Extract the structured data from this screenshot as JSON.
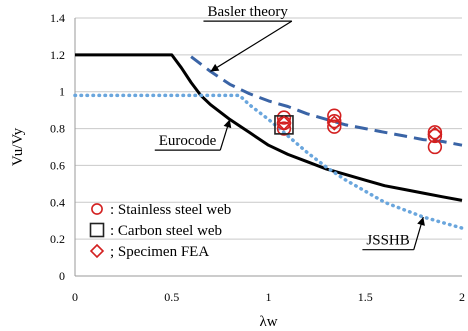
{
  "chart_data": {
    "type": "line",
    "xlabel": "λw",
    "ylabel": "Vu/Vy",
    "xlim": [
      0,
      2
    ],
    "ylim": [
      0,
      1.4
    ],
    "x_ticks": [
      0,
      0.5,
      1,
      1.5,
      2
    ],
    "y_ticks": [
      0,
      0.2,
      0.4,
      0.6,
      0.8,
      1,
      1.2,
      1.4
    ],
    "x_tick_labels": [
      "0",
      "0.5",
      "1",
      "1.5",
      "2"
    ],
    "y_tick_labels": [
      "0",
      "0.2",
      "0.4",
      "0.6",
      "0.8",
      "1",
      "1.2",
      "1.4"
    ],
    "grid": "horizontal",
    "curves": [
      {
        "label": "Eurocode",
        "style": "solid",
        "color": "#000000",
        "points": [
          [
            0,
            1.2
          ],
          [
            0.5,
            1.2
          ],
          [
            0.55,
            1.13
          ],
          [
            0.6,
            1.05
          ],
          [
            0.65,
            0.98
          ],
          [
            0.7,
            0.93
          ],
          [
            0.8,
            0.85
          ],
          [
            0.9,
            0.78
          ],
          [
            1.0,
            0.71
          ],
          [
            1.1,
            0.66
          ],
          [
            1.2,
            0.62
          ],
          [
            1.3,
            0.58
          ],
          [
            1.4,
            0.55
          ],
          [
            1.5,
            0.52
          ],
          [
            1.6,
            0.49
          ],
          [
            1.7,
            0.47
          ],
          [
            1.8,
            0.45
          ],
          [
            1.9,
            0.43
          ],
          [
            2.0,
            0.41
          ]
        ]
      },
      {
        "label": "Basler theory",
        "style": "dashed",
        "color": "#3a64a6",
        "points": [
          [
            0.6,
            1.19
          ],
          [
            0.7,
            1.11
          ],
          [
            0.8,
            1.04
          ],
          [
            0.9,
            0.99
          ],
          [
            1.0,
            0.95
          ],
          [
            1.1,
            0.92
          ],
          [
            1.2,
            0.88
          ],
          [
            1.3,
            0.85
          ],
          [
            1.4,
            0.82
          ],
          [
            1.5,
            0.8
          ],
          [
            1.6,
            0.78
          ],
          [
            1.7,
            0.76
          ],
          [
            1.8,
            0.74
          ],
          [
            1.9,
            0.73
          ],
          [
            2.0,
            0.71
          ]
        ]
      },
      {
        "label": "JSSHB",
        "style": "dotted",
        "color": "#6aa6dd",
        "points": [
          [
            0,
            0.98
          ],
          [
            0.85,
            0.98
          ],
          [
            0.9,
            0.93
          ],
          [
            1.0,
            0.85
          ],
          [
            1.1,
            0.76
          ],
          [
            1.2,
            0.67
          ],
          [
            1.3,
            0.59
          ],
          [
            1.4,
            0.52
          ],
          [
            1.5,
            0.46
          ],
          [
            1.6,
            0.4
          ],
          [
            1.7,
            0.36
          ],
          [
            1.8,
            0.32
          ],
          [
            1.9,
            0.29
          ],
          [
            2.0,
            0.26
          ]
        ]
      }
    ],
    "series": [
      {
        "name": "Stainless steel web",
        "marker": "circle",
        "color": "#d32020",
        "points": [
          [
            1.08,
            0.86
          ],
          [
            1.08,
            0.83
          ],
          [
            1.08,
            0.8
          ],
          [
            1.34,
            0.87
          ],
          [
            1.34,
            0.84
          ],
          [
            1.34,
            0.81
          ],
          [
            1.86,
            0.78
          ],
          [
            1.86,
            0.76
          ],
          [
            1.86,
            0.7
          ]
        ]
      },
      {
        "name": "Carbon steel web",
        "marker": "square",
        "color": "#222222",
        "points": [
          [
            1.08,
            0.82
          ]
        ]
      },
      {
        "name": "Specimen FEA",
        "marker": "diamond",
        "color": "#d32020",
        "points": [
          [
            1.08,
            0.83
          ],
          [
            1.34,
            0.83
          ],
          [
            1.86,
            0.77
          ]
        ]
      }
    ],
    "legend": {
      "placement": "bottom-left",
      "entries": [
        {
          "marker": "circle",
          "color": "#d32020",
          "text": ": Stainless steel web"
        },
        {
          "marker": "square",
          "color": "#222222",
          "text": ": Carbon steel web"
        },
        {
          "marker": "diamond",
          "color": "#d32020",
          "text": "; Specimen FEA"
        }
      ]
    },
    "annotations": [
      {
        "text": "Basler theory",
        "box": true,
        "target": [
          0.7,
          1.11
        ],
        "anchor": [
          1.1,
          1.41
        ]
      },
      {
        "text": "Eurocode",
        "box": true,
        "target": [
          0.8,
          0.85
        ],
        "anchor": [
          0.73,
          0.71
        ]
      },
      {
        "text": "JSSHB",
        "box": true,
        "target": [
          1.8,
          0.32
        ],
        "anchor": [
          1.73,
          0.17
        ]
      }
    ]
  }
}
